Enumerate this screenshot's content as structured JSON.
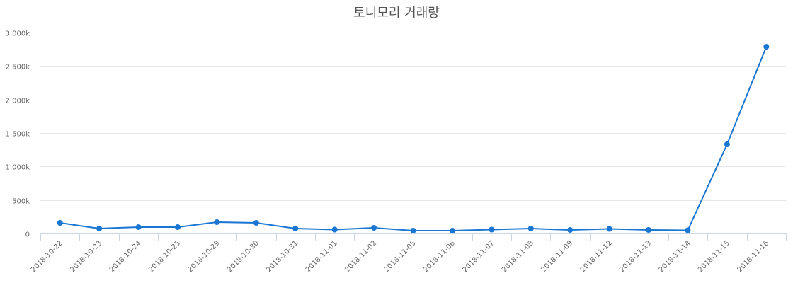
{
  "chart_data": {
    "type": "line",
    "title": "토니모리 거래량",
    "xlabel": "",
    "ylabel": "",
    "ylim": [
      0,
      3000000
    ],
    "yticks": [
      0,
      500000,
      1000000,
      1500000,
      2000000,
      2500000,
      3000000
    ],
    "ytick_labels": [
      "0",
      "500k",
      "1 000k",
      "1 500k",
      "2 000k",
      "2 500k",
      "3 000k"
    ],
    "grid": true,
    "legend": null,
    "categories": [
      "2018-10-22",
      "2018-10-23",
      "2018-10-24",
      "2018-10-25",
      "2018-10-29",
      "2018-10-30",
      "2018-10-31",
      "2018-11-01",
      "2018-11-02",
      "2018-11-05",
      "2018-11-06",
      "2018-11-07",
      "2018-11-08",
      "2018-11-09",
      "2018-11-12",
      "2018-11-13",
      "2018-11-14",
      "2018-11-15",
      "2018-11-16"
    ],
    "series": [
      {
        "name": "거래량",
        "color": "#1976d2",
        "values": [
          158000,
          74000,
          95000,
          95000,
          169000,
          158000,
          74000,
          58000,
          85000,
          42000,
          42000,
          58000,
          74000,
          53000,
          69000,
          53000,
          48000,
          1331000,
          2788000
        ]
      }
    ]
  },
  "colors": {
    "line": "#1976d2",
    "grid": "#e6e6e6",
    "axis": "#ccd6eb",
    "text": "#666666",
    "title": "#555555"
  }
}
